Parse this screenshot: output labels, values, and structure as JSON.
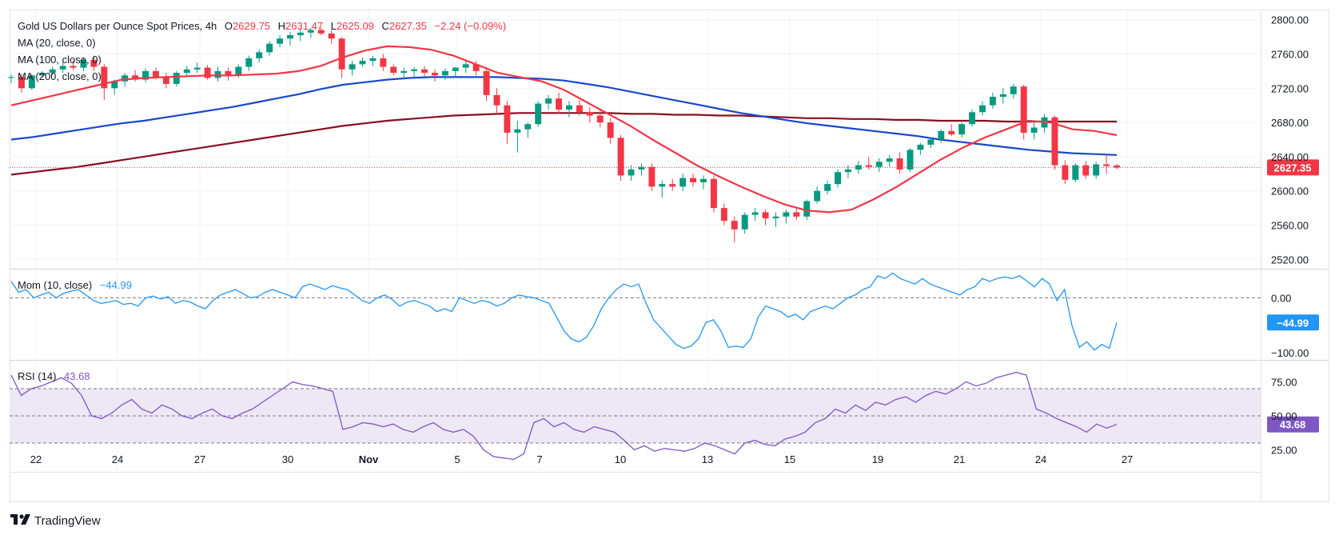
{
  "header": {
    "title": "Gold US Dollars per Ounce Spot Prices, 4h",
    "o_label": "O",
    "o_value": "2629.75",
    "h_label": "H",
    "h_value": "2631.47",
    "l_label": "L",
    "l_value": "2625.09",
    "c_label": "C",
    "c_value": "2627.35",
    "change": "−2.24 (−0.09%)"
  },
  "legend": {
    "ma20": "MA (20, close, 0)",
    "ma100": "MA (100, close, 0)",
    "ma200": "MA (200, close, 0)",
    "mom_name": "Mom (10, close)",
    "mom_value": "−44.99",
    "rsi_name": "RSI (14)",
    "rsi_value": "43.68"
  },
  "price_axis": {
    "ticks": [
      "2800.00",
      "2760.00",
      "2720.00",
      "2680.00",
      "2640.00",
      "2600.00",
      "2560.00",
      "2520.00"
    ],
    "last_price_tag": "2627.35"
  },
  "mom_axis": {
    "ticks": [
      "0.00",
      "−100.00"
    ],
    "value_tag": "−44.99"
  },
  "rsi_axis": {
    "ticks": [
      "75.00",
      "50.00",
      "25.00"
    ],
    "value_tag": "43.68"
  },
  "time_axis": [
    "22",
    "24",
    "27",
    "30",
    "Nov",
    "5",
    "7",
    "10",
    "13",
    "15",
    "19",
    "21",
    "24",
    "27"
  ],
  "brand": "TradingView",
  "colors": {
    "up": "#089981",
    "down": "#f23645",
    "ma20": "#f23645",
    "ma100": "#1848cc",
    "ma200": "#880e1f",
    "mom": "#2196f3",
    "rsi": "#7e57c2",
    "rsi_band": "#ede7f6",
    "text": "#131722"
  },
  "chart_data": [
    {
      "type": "candlestick",
      "title": "Gold US Dollars per Ounce Spot Prices, 4h",
      "x_labels": [
        "22",
        "24",
        "27",
        "30",
        "Nov",
        "5",
        "7",
        "10",
        "13",
        "15",
        "19",
        "21",
        "24",
        "27"
      ],
      "ylim": [
        2510,
        2810
      ],
      "last_close": 2627.35,
      "ohlc": [
        [
          2732,
          2736,
          2726,
          2733
        ],
        [
          2733,
          2737,
          2715,
          2720
        ],
        [
          2720,
          2736,
          2718,
          2735
        ],
        [
          2735,
          2740,
          2732,
          2738
        ],
        [
          2738,
          2745,
          2735,
          2742
        ],
        [
          2742,
          2750,
          2738,
          2746
        ],
        [
          2746,
          2752,
          2741,
          2744
        ],
        [
          2744,
          2756,
          2740,
          2753
        ],
        [
          2753,
          2758,
          2740,
          2745
        ],
        [
          2745,
          2748,
          2706,
          2720
        ],
        [
          2720,
          2730,
          2712,
          2728
        ],
        [
          2728,
          2738,
          2722,
          2735
        ],
        [
          2735,
          2741,
          2728,
          2730
        ],
        [
          2730,
          2743,
          2727,
          2740
        ],
        [
          2740,
          2744,
          2730,
          2733
        ],
        [
          2733,
          2738,
          2720,
          2725
        ],
        [
          2725,
          2740,
          2722,
          2738
        ],
        [
          2738,
          2746,
          2733,
          2742
        ],
        [
          2742,
          2750,
          2738,
          2744
        ],
        [
          2744,
          2747,
          2730,
          2732
        ],
        [
          2732,
          2745,
          2728,
          2740
        ],
        [
          2740,
          2744,
          2729,
          2735
        ],
        [
          2735,
          2748,
          2732,
          2745
        ],
        [
          2745,
          2758,
          2740,
          2755
        ],
        [
          2755,
          2765,
          2750,
          2762
        ],
        [
          2762,
          2775,
          2758,
          2772
        ],
        [
          2772,
          2782,
          2768,
          2778
        ],
        [
          2778,
          2786,
          2770,
          2782
        ],
        [
          2782,
          2790,
          2775,
          2785
        ],
        [
          2785,
          2790,
          2779,
          2788
        ],
        [
          2788,
          2791,
          2782,
          2784
        ],
        [
          2784,
          2788,
          2772,
          2778
        ],
        [
          2778,
          2780,
          2732,
          2742
        ],
        [
          2742,
          2752,
          2735,
          2748
        ],
        [
          2748,
          2756,
          2745,
          2752
        ],
        [
          2752,
          2758,
          2746,
          2755
        ],
        [
          2755,
          2760,
          2740,
          2745
        ],
        [
          2745,
          2748,
          2735,
          2738
        ],
        [
          2738,
          2744,
          2730,
          2740
        ],
        [
          2740,
          2745,
          2732,
          2742
        ],
        [
          2742,
          2746,
          2734,
          2738
        ],
        [
          2738,
          2742,
          2728,
          2735
        ],
        [
          2735,
          2743,
          2730,
          2740
        ],
        [
          2740,
          2745,
          2732,
          2744
        ],
        [
          2744,
          2752,
          2738,
          2748
        ],
        [
          2748,
          2752,
          2735,
          2740
        ],
        [
          2740,
          2745,
          2705,
          2712
        ],
        [
          2712,
          2720,
          2690,
          2700
        ],
        [
          2700,
          2705,
          2655,
          2668
        ],
        [
          2668,
          2682,
          2645,
          2672
        ],
        [
          2672,
          2680,
          2662,
          2678
        ],
        [
          2678,
          2705,
          2675,
          2702
        ],
        [
          2702,
          2712,
          2695,
          2708
        ],
        [
          2708,
          2715,
          2690,
          2695
        ],
        [
          2695,
          2705,
          2686,
          2700
        ],
        [
          2700,
          2706,
          2688,
          2692
        ],
        [
          2692,
          2698,
          2680,
          2688
        ],
        [
          2688,
          2695,
          2674,
          2680
        ],
        [
          2680,
          2685,
          2655,
          2662
        ],
        [
          2662,
          2665,
          2612,
          2618
        ],
        [
          2618,
          2630,
          2612,
          2625
        ],
        [
          2625,
          2632,
          2618,
          2628
        ],
        [
          2628,
          2632,
          2600,
          2605
        ],
        [
          2605,
          2612,
          2592,
          2608
        ],
        [
          2608,
          2614,
          2600,
          2605
        ],
        [
          2605,
          2620,
          2600,
          2615
        ],
        [
          2615,
          2620,
          2605,
          2610
        ],
        [
          2610,
          2618,
          2602,
          2614
        ],
        [
          2614,
          2618,
          2575,
          2580
        ],
        [
          2580,
          2585,
          2560,
          2565
        ],
        [
          2565,
          2570,
          2540,
          2555
        ],
        [
          2555,
          2575,
          2550,
          2572
        ],
        [
          2572,
          2580,
          2565,
          2575
        ],
        [
          2575,
          2578,
          2560,
          2568
        ],
        [
          2568,
          2575,
          2558,
          2570
        ],
        [
          2570,
          2578,
          2562,
          2575
        ],
        [
          2575,
          2580,
          2566,
          2570
        ],
        [
          2570,
          2590,
          2566,
          2588
        ],
        [
          2588,
          2605,
          2585,
          2600
        ],
        [
          2600,
          2612,
          2596,
          2608
        ],
        [
          2608,
          2625,
          2604,
          2622
        ],
        [
          2622,
          2630,
          2615,
          2625
        ],
        [
          2625,
          2635,
          2620,
          2630
        ],
        [
          2630,
          2640,
          2625,
          2628
        ],
        [
          2628,
          2638,
          2622,
          2634
        ],
        [
          2634,
          2642,
          2628,
          2638
        ],
        [
          2638,
          2645,
          2620,
          2625
        ],
        [
          2625,
          2650,
          2622,
          2648
        ],
        [
          2648,
          2656,
          2642,
          2654
        ],
        [
          2654,
          2662,
          2650,
          2660
        ],
        [
          2660,
          2672,
          2656,
          2670
        ],
        [
          2670,
          2678,
          2664,
          2666
        ],
        [
          2666,
          2680,
          2662,
          2678
        ],
        [
          2678,
          2695,
          2675,
          2692
        ],
        [
          2692,
          2705,
          2688,
          2700
        ],
        [
          2700,
          2715,
          2696,
          2710
        ],
        [
          2710,
          2720,
          2702,
          2713
        ],
        [
          2713,
          2725,
          2708,
          2722
        ],
        [
          2722,
          2724,
          2660,
          2668
        ],
        [
          2668,
          2680,
          2660,
          2674
        ],
        [
          2674,
          2690,
          2668,
          2686
        ],
        [
          2686,
          2688,
          2625,
          2630
        ],
        [
          2630,
          2636,
          2608,
          2613
        ],
        [
          2613,
          2632,
          2610,
          2630
        ],
        [
          2630,
          2635,
          2614,
          2618
        ],
        [
          2618,
          2634,
          2614,
          2631
        ],
        [
          2631,
          2642,
          2620,
          2629
        ],
        [
          2629.75,
          2631.47,
          2625.09,
          2627.35
        ]
      ],
      "series": [
        {
          "name": "MA (20, close, 0)",
          "values": [
            2700,
            2706,
            2712,
            2718,
            2724,
            2730,
            2732,
            2733,
            2734,
            2735,
            2735,
            2736,
            2737,
            2740,
            2746,
            2756,
            2764,
            2769,
            2768,
            2765,
            2758,
            2748,
            2738,
            2733,
            2728,
            2718,
            2704,
            2690,
            2676,
            2660,
            2645,
            2630,
            2617,
            2605,
            2594,
            2584,
            2577,
            2575,
            2578,
            2590,
            2604,
            2620,
            2636,
            2650,
            2662,
            2672,
            2682,
            2680,
            2672,
            2670,
            2665
          ]
        },
        {
          "name": "MA (100, close, 0)",
          "values": [
            2660,
            2663,
            2667,
            2671,
            2675,
            2679,
            2682,
            2686,
            2690,
            2694,
            2698,
            2703,
            2708,
            2713,
            2719,
            2724,
            2727,
            2730,
            2732,
            2733,
            2733,
            2733,
            2733,
            2732,
            2731,
            2729,
            2725,
            2721,
            2716,
            2711,
            2706,
            2701,
            2696,
            2691,
            2687,
            2683,
            2679,
            2676,
            2673,
            2670,
            2667,
            2664,
            2660,
            2657,
            2654,
            2651,
            2648,
            2646,
            2644,
            2643,
            2642
          ]
        },
        {
          "name": "MA (200, close, 0)",
          "values": [
            2619,
            2622,
            2625,
            2628,
            2632,
            2636,
            2640,
            2644,
            2648,
            2652,
            2656,
            2660,
            2664,
            2668,
            2672,
            2676,
            2679,
            2682,
            2684,
            2686,
            2688,
            2689,
            2690,
            2691,
            2691,
            2691,
            2691,
            2691,
            2690,
            2690,
            2689,
            2689,
            2688,
            2688,
            2687,
            2686,
            2685,
            2685,
            2684,
            2684,
            2683,
            2683,
            2682,
            2682,
            2682,
            2681,
            2681,
            2681,
            2681,
            2681,
            2681
          ]
        }
      ]
    },
    {
      "type": "line",
      "title": "Mom (10, close)",
      "ylim": [
        -110,
        50
      ],
      "last_value": -44.99,
      "values": [
        30,
        10,
        15,
        0,
        5,
        10,
        0,
        8,
        12,
        15,
        5,
        -5,
        -10,
        -8,
        -5,
        -12,
        -10,
        -15,
        0,
        3,
        -2,
        2,
        -10,
        -5,
        -8,
        -15,
        -20,
        -5,
        5,
        10,
        15,
        8,
        0,
        2,
        10,
        15,
        10,
        5,
        0,
        20,
        25,
        20,
        15,
        22,
        18,
        15,
        5,
        -5,
        -10,
        0,
        5,
        -3,
        -15,
        -8,
        -5,
        -10,
        -15,
        -25,
        -20,
        -25,
        0,
        -5,
        -10,
        -5,
        -8,
        -15,
        -10,
        0,
        5,
        2,
        0,
        -5,
        -10,
        -35,
        -60,
        -75,
        -80,
        -72,
        -50,
        -20,
        0,
        15,
        25,
        20,
        25,
        -10,
        -40,
        -55,
        -70,
        -85,
        -92,
        -88,
        -75,
        -45,
        -40,
        -60,
        -90,
        -88,
        -90,
        -75,
        -35,
        -15,
        -20,
        -25,
        -35,
        -30,
        -40,
        -25,
        -20,
        -15,
        -20,
        -10,
        0,
        5,
        15,
        20,
        40,
        35,
        45,
        35,
        30,
        25,
        35,
        25,
        20,
        15,
        10,
        5,
        15,
        20,
        35,
        30,
        35,
        38,
        35,
        40,
        30,
        20,
        35,
        25,
        -5,
        15,
        -50,
        -90,
        -80,
        -95,
        -85,
        -92,
        -44.99
      ]
    },
    {
      "type": "line",
      "title": "RSI (14)",
      "ylim": [
        10,
        90
      ],
      "bands": [
        30,
        50,
        70
      ],
      "last_value": 43.68,
      "values": [
        80,
        65,
        70,
        72,
        75,
        78,
        74,
        65,
        50,
        48,
        52,
        58,
        62,
        55,
        52,
        58,
        55,
        50,
        48,
        52,
        55,
        50,
        48,
        52,
        55,
        60,
        65,
        70,
        75,
        73,
        72,
        70,
        68,
        40,
        42,
        45,
        44,
        42,
        44,
        40,
        38,
        42,
        45,
        40,
        38,
        40,
        35,
        25,
        20,
        19,
        18,
        22,
        45,
        48,
        42,
        45,
        40,
        38,
        42,
        40,
        38,
        32,
        25,
        28,
        24,
        26,
        25,
        24,
        26,
        30,
        28,
        25,
        22,
        30,
        32,
        29,
        28,
        33,
        35,
        38,
        45,
        48,
        55,
        52,
        58,
        54,
        60,
        58,
        62,
        64,
        60,
        65,
        68,
        66,
        70,
        75,
        72,
        74,
        78,
        80,
        82,
        80,
        55,
        52,
        48,
        45,
        42,
        38,
        44,
        41,
        43.68
      ]
    }
  ]
}
